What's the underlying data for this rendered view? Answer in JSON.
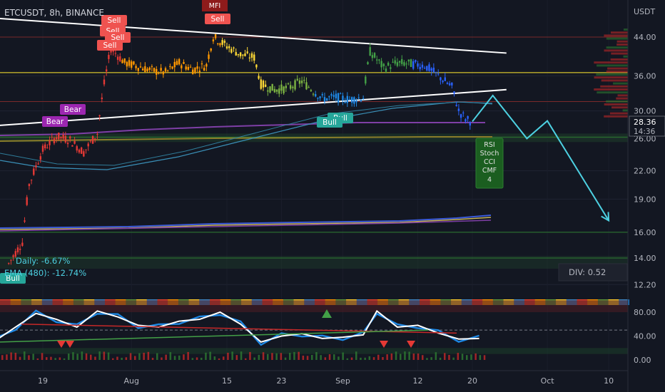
{
  "header": {
    "symbol": "ETCUSDT, 8h, BINANCE"
  },
  "price_axis": {
    "currency": "USDT",
    "current_price": "28.36",
    "countdown": "14:36"
  },
  "indicators": {
    "daily": "Daily: -6.67%",
    "ema": "EMA (480): -12.74%",
    "div": "DIV: 0.52"
  },
  "signal_box": {
    "lines": [
      "RSI",
      "Stoch",
      "CCI",
      "CMF",
      "4"
    ]
  },
  "labels": {
    "sell": "Sell",
    "bear": "Bear",
    "bull": "Bull",
    "mfi": "MFI"
  },
  "colors": {
    "background": "#131722",
    "sell_label": "#ef5350",
    "bear_label": "#9c27b0",
    "bull_label": "#26a69a",
    "trendline": "#ffffff",
    "projection": "#4dd0e1",
    "yellow_line": "#d4c22d",
    "purple_line": "#7e3fa6"
  },
  "chart_data": {
    "type": "line",
    "title": "ETCUSDT, 8h, BINANCE",
    "xlabel": "",
    "ylabel": "USDT",
    "y_scale": "log",
    "ylim": [
      11.5,
      50
    ],
    "x_ticks": [
      "19",
      "Aug",
      "15",
      "23",
      "Sep",
      "12",
      "20",
      "Oct",
      "10"
    ],
    "y_ticks": [
      12.2,
      14.0,
      16.0,
      19.0,
      22.0,
      26.0,
      30.0,
      36.0,
      44.0
    ],
    "price_path": {
      "name": "ETCUSDT close",
      "points": [
        [
          "Jul 14",
          13.6
        ],
        [
          "Jul 16",
          15.2
        ],
        [
          "Jul 17",
          20.5
        ],
        [
          "Jul 19",
          24.5
        ],
        [
          "Jul 21",
          26.3
        ],
        [
          "Jul 23",
          25.8
        ],
        [
          "Jul 25",
          24.2
        ],
        [
          "Jul 27",
          26.7
        ],
        [
          "Jul 28",
          34.5
        ],
        [
          "Jul 29",
          41.5
        ],
        [
          "Jul 31",
          38.5
        ],
        [
          "Aug 2",
          37.8
        ],
        [
          "Aug 4",
          37.0
        ],
        [
          "Aug 6",
          36.6
        ],
        [
          "Aug 8",
          38.5
        ],
        [
          "Aug 10",
          37.2
        ],
        [
          "Aug 12",
          38.0
        ],
        [
          "Aug 13",
          44.0
        ],
        [
          "Aug 15",
          42.0
        ],
        [
          "Aug 17",
          40.2
        ],
        [
          "Aug 19",
          39.6
        ],
        [
          "Aug 20",
          34.5
        ],
        [
          "Aug 22",
          33.5
        ],
        [
          "Aug 24",
          33.8
        ],
        [
          "Aug 26",
          35.0
        ],
        [
          "Aug 27",
          34.0
        ],
        [
          "Aug 29",
          32.0
        ],
        [
          "Aug 31",
          32.2
        ],
        [
          "Sep 2",
          31.8
        ],
        [
          "Sep 4",
          32.2
        ],
        [
          "Sep 5",
          40.8
        ],
        [
          "Sep 7",
          37.5
        ],
        [
          "Sep 9",
          38.5
        ],
        [
          "Sep 11",
          38.3
        ],
        [
          "Sep 13",
          38.0
        ],
        [
          "Sep 15",
          36.0
        ],
        [
          "Sep 17",
          34.0
        ],
        [
          "Sep 18",
          30.0
        ],
        [
          "Sep 19",
          28.8
        ],
        [
          "Sep 20",
          28.36
        ]
      ]
    },
    "series": [
      {
        "points": [
          [
            "Jul 12",
            49.0
          ],
          [
            "Sep 25",
            40.5
          ]
        ]
      },
      {
        "points": [
          [
            "Jul 12",
            27.5
          ],
          [
            "Sep 25",
            33.5
          ]
        ]
      },
      {
        "points": [
          [
            "Sep 20",
            28.4
          ],
          [
            "Sep 23",
            32.5
          ],
          [
            "Sep 28",
            26.0
          ],
          [
            "Oct 1",
            28.5
          ],
          [
            "Oct 10",
            17.0
          ]
        ]
      }
    ],
    "horizontal_levels": [
      44.0,
      36.6,
      31.5,
      26.2,
      16.0,
      14.0
    ],
    "oscillator": {
      "ylim": [
        -10,
        110
      ],
      "y_ticks": [
        0.0,
        40.0,
        80.0
      ],
      "points": [
        [
          "Jul 12",
          32
        ],
        [
          "Jul 15",
          55
        ],
        [
          "Jul 18",
          78
        ],
        [
          "Jul 21",
          68
        ],
        [
          "Jul 24",
          55
        ],
        [
          "Jul 27",
          82
        ],
        [
          "Jul 30",
          72
        ],
        [
          "Aug 2",
          58
        ],
        [
          "Aug 5",
          55
        ],
        [
          "Aug 8",
          65
        ],
        [
          "Aug 11",
          68
        ],
        [
          "Aug 14",
          80
        ],
        [
          "Aug 17",
          60
        ],
        [
          "Aug 20",
          30
        ],
        [
          "Aug 23",
          40
        ],
        [
          "Aug 26",
          44
        ],
        [
          "Aug 29",
          36
        ],
        [
          "Sep 1",
          38
        ],
        [
          "Sep 4",
          42
        ],
        [
          "Sep 6",
          82
        ],
        [
          "Sep 9",
          55
        ],
        [
          "Sep 12",
          58
        ],
        [
          "Sep 15",
          45
        ],
        [
          "Sep 18",
          35
        ],
        [
          "Sep 21",
          36
        ]
      ]
    }
  }
}
